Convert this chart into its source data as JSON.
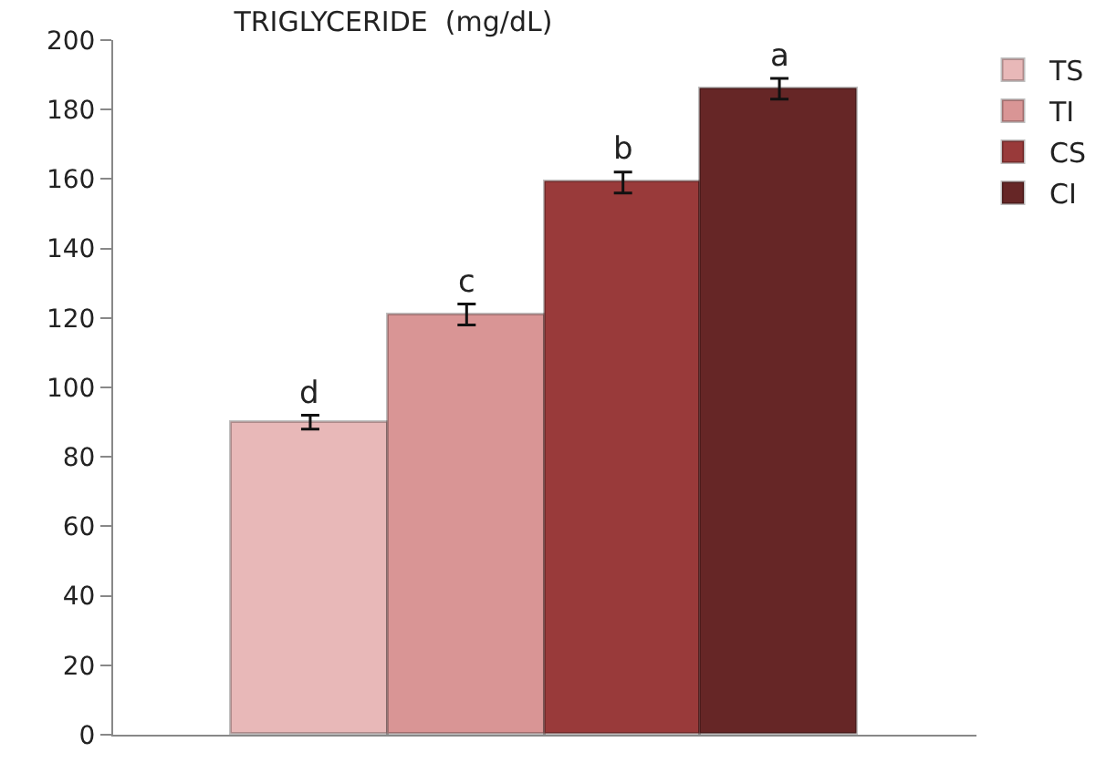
{
  "chart_data": {
    "type": "bar",
    "title": "TRIGLYCERIDE  (mg/dL)",
    "categories": [
      null
    ],
    "series": [
      {
        "name": "TS",
        "color": "#e8b8b8",
        "values": [
          90
        ],
        "errors": [
          2
        ]
      },
      {
        "name": "TI",
        "color": "#d99595",
        "values": [
          121
        ],
        "errors": [
          3
        ]
      },
      {
        "name": "CS",
        "color": "#993a3a",
        "values": [
          159
        ],
        "errors": [
          3
        ]
      },
      {
        "name": "CI",
        "color": "#662626",
        "values": [
          186
        ],
        "errors": [
          3
        ]
      }
    ],
    "annotations": [
      "d",
      "c",
      "b",
      "a"
    ],
    "ylim": [
      0,
      200
    ],
    "yticks": [
      0,
      20,
      40,
      60,
      80,
      100,
      120,
      140,
      160,
      180,
      200
    ],
    "grid": false,
    "legend": "top right"
  }
}
